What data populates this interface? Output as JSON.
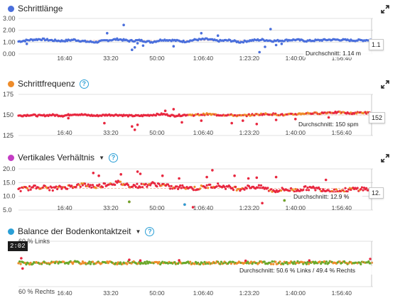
{
  "colors": {
    "blue": "#4a6fdc",
    "orange": "#ee8c2a",
    "red": "#e8273f",
    "purple": "#c43cc4",
    "cyan": "#2a9fd6",
    "green": "#6aa82a",
    "gridline": "#d8d8d8",
    "avgline": "#f0b9a6"
  },
  "icons": {
    "expand": "expand-arrows-icon",
    "help": "question-circle-icon",
    "dropdown": "caret-down-icon"
  },
  "x_axis_ticks": [
    "16:40",
    "33:20",
    "50:00",
    "1:06:40",
    "1:23:20",
    "1:40:00",
    "1:56:40"
  ],
  "chart_data": [
    {
      "type": "scatter",
      "title": "Schrittlänge",
      "y_ticks": [
        "3.00",
        "2.00",
        "1.00",
        "0.00"
      ],
      "ylim": [
        0,
        3
      ],
      "x_range_min": [
        0,
        128
      ],
      "average_label": "Durchschnitt: 1.14 m",
      "average": 1.14,
      "cursor_value": "1.1",
      "series": [
        {
          "color": "#4a6fdc",
          "x": [
            0,
            4,
            8,
            12,
            16,
            20,
            24,
            28,
            32,
            36,
            40,
            44,
            48,
            52,
            56,
            60,
            64,
            68,
            72,
            76,
            80,
            84,
            88,
            92,
            96,
            100,
            104,
            108,
            112,
            116,
            120,
            124,
            128
          ],
          "y": [
            1.05,
            1.18,
            1.25,
            1.15,
            1.1,
            1.2,
            1.05,
            1.0,
            1.15,
            1.25,
            1.1,
            1.15,
            1.0,
            1.2,
            1.15,
            1.05,
            1.2,
            1.25,
            1.1,
            1.15,
            1.0,
            1.15,
            1.2,
            1.1,
            1.15,
            1.2,
            1.1,
            1.15,
            1.2,
            1.2,
            1.15,
            1.15,
            1.2
          ]
        }
      ],
      "outliers": [
        {
          "x": 32,
          "y": 1.75
        },
        {
          "x": 38,
          "y": 2.45
        },
        {
          "x": 41,
          "y": 0.35
        },
        {
          "x": 42,
          "y": 0.55
        },
        {
          "x": 43,
          "y": 0.9
        },
        {
          "x": 45,
          "y": 0.7
        },
        {
          "x": 56,
          "y": 0.65
        },
        {
          "x": 66,
          "y": 1.75
        },
        {
          "x": 72,
          "y": 1.55
        },
        {
          "x": 87,
          "y": 0.15
        },
        {
          "x": 89,
          "y": 0.6
        },
        {
          "x": 91,
          "y": 2.1
        },
        {
          "x": 93,
          "y": 0.75
        },
        {
          "x": 95,
          "y": 0.85
        },
        {
          "x": 3,
          "y": 0.85
        }
      ]
    },
    {
      "type": "scatter",
      "title": "Schrittfrequenz",
      "y_ticks": [
        "175",
        "150",
        "125"
      ],
      "ylim": [
        125,
        175
      ],
      "average_label": "Durchschnitt: 150 spm",
      "average": 150,
      "cursor_value": "152",
      "series": [
        {
          "color": "#e8273f",
          "x": [
            0,
            4,
            8,
            12,
            16,
            20,
            24,
            28,
            32,
            36,
            40,
            44,
            48,
            52,
            56,
            60,
            64,
            68,
            72,
            76,
            80,
            84,
            88,
            92,
            96,
            100,
            104,
            108,
            112,
            116,
            120,
            124,
            128
          ],
          "y": [
            149,
            150,
            149,
            150,
            149,
            151,
            150,
            149,
            150,
            150,
            149,
            149,
            150,
            151,
            149,
            150,
            150,
            151,
            150,
            150,
            149,
            150,
            151,
            151,
            150,
            151,
            152,
            152,
            153,
            153,
            152,
            153,
            152
          ]
        }
      ],
      "outliers": [
        {
          "x": 31,
          "y": 140
        },
        {
          "x": 41,
          "y": 136
        },
        {
          "x": 42,
          "y": 132
        },
        {
          "x": 43,
          "y": 138
        },
        {
          "x": 53,
          "y": 155
        },
        {
          "x": 56,
          "y": 157
        },
        {
          "x": 59,
          "y": 141
        },
        {
          "x": 66,
          "y": 143
        },
        {
          "x": 77,
          "y": 140
        },
        {
          "x": 81,
          "y": 143
        },
        {
          "x": 86,
          "y": 139
        },
        {
          "x": 93,
          "y": 144
        },
        {
          "x": 100,
          "y": 145
        },
        {
          "x": 18,
          "y": 146
        },
        {
          "x": 112,
          "y": 147
        }
      ]
    },
    {
      "type": "scatter",
      "title": "Vertikales Verhältnis",
      "y_ticks": [
        "20.0",
        "15.0",
        "10.0",
        "5.0"
      ],
      "ylim": [
        5,
        20
      ],
      "average_label": "Durchschnitt: 12.9 %",
      "average": 12.9,
      "cursor_value": "12.",
      "series": [
        {
          "color": "#e8273f",
          "x": [
            0,
            4,
            8,
            12,
            16,
            20,
            24,
            28,
            32,
            36,
            40,
            44,
            48,
            52,
            56,
            60,
            64,
            68,
            72,
            76,
            80,
            84,
            88,
            92,
            96,
            100,
            104,
            108,
            112,
            116,
            120,
            124,
            128
          ],
          "y": [
            12.5,
            13.0,
            13.5,
            12.8,
            13.2,
            13.8,
            14.2,
            13.5,
            14.5,
            15.0,
            14.0,
            13.8,
            14.5,
            14.2,
            13.0,
            13.5,
            12.8,
            13.6,
            14.0,
            13.2,
            12.8,
            13.5,
            13.2,
            12.0,
            12.5,
            12.2,
            13.0,
            12.8,
            12.2,
            12.0,
            12.5,
            12.8,
            12.2
          ]
        }
      ],
      "outliers": [
        {
          "x": 27,
          "y": 18.5
        },
        {
          "x": 29,
          "y": 17.5
        },
        {
          "x": 37,
          "y": 18.0
        },
        {
          "x": 43,
          "y": 19.0
        },
        {
          "x": 44,
          "y": 18.2
        },
        {
          "x": 52,
          "y": 17.5
        },
        {
          "x": 58,
          "y": 16.5
        },
        {
          "x": 68,
          "y": 17.0
        },
        {
          "x": 70,
          "y": 19.5
        },
        {
          "x": 78,
          "y": 17.5
        },
        {
          "x": 83,
          "y": 16.5
        },
        {
          "x": 86,
          "y": 16.8
        },
        {
          "x": 93,
          "y": 17.0
        },
        {
          "x": 111,
          "y": 16.0
        },
        {
          "x": 40,
          "y": 8.0
        },
        {
          "x": 60,
          "y": 7.0
        },
        {
          "x": 63,
          "y": 6.0
        },
        {
          "x": 88,
          "y": 7.5
        },
        {
          "x": 96,
          "y": 8.5
        },
        {
          "x": 118,
          "y": 10.0
        }
      ]
    },
    {
      "type": "scatter",
      "title": "Balance der Bodenkontaktzeit",
      "y_ticks": [
        "60 % Links",
        "60 % Rechts"
      ],
      "ylim": [
        -10,
        10
      ],
      "average_label": "Durchschnitt: 50.6 % Links / 49.4 % Rechts",
      "average": 0.6,
      "cursor_time": "2:02",
      "series": [
        {
          "color": "#6aa82a",
          "x": [
            0,
            4,
            8,
            12,
            16,
            20,
            24,
            28,
            32,
            36,
            40,
            44,
            48,
            52,
            56,
            60,
            64,
            68,
            72,
            76,
            80,
            84,
            88,
            92,
            96,
            100,
            104,
            108,
            112,
            116,
            120,
            124,
            128
          ],
          "y": [
            0.5,
            0.3,
            0.6,
            0.4,
            0.5,
            0.7,
            0.4,
            0.5,
            0.6,
            0.4,
            0.5,
            0.6,
            0.5,
            0.4,
            0.6,
            0.5,
            0.4,
            0.5,
            0.6,
            0.5,
            0.4,
            0.6,
            0.5,
            0.5,
            0.4,
            0.6,
            0.5,
            0.4,
            0.6,
            0.5,
            0.5,
            0.4,
            0.6
          ]
        }
      ],
      "outliers": [
        {
          "x": 1,
          "y": 2.5
        },
        {
          "x": 1.5,
          "y": -2.0
        },
        {
          "x": 40,
          "y": 1.8
        },
        {
          "x": 44,
          "y": 1.5
        },
        {
          "x": 58,
          "y": 1.6
        },
        {
          "x": 82,
          "y": 1.4
        },
        {
          "x": 105,
          "y": 1.5
        },
        {
          "x": 127,
          "y": 2.2
        }
      ]
    }
  ]
}
